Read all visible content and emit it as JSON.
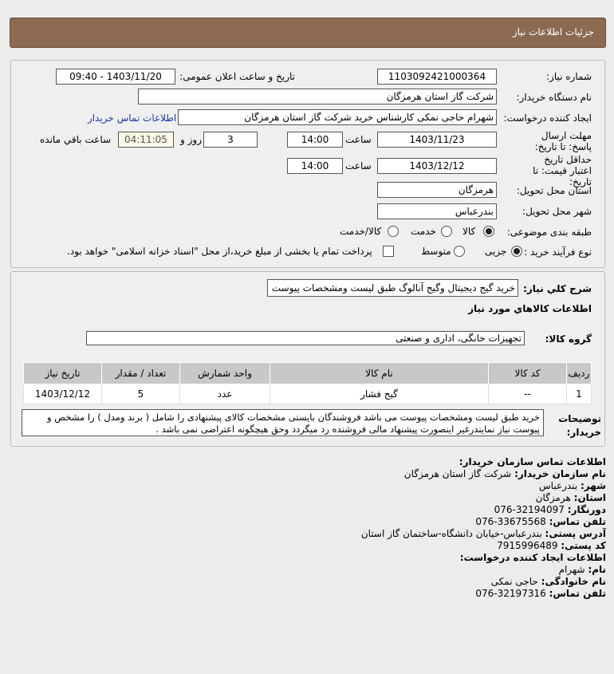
{
  "header": {
    "title": "جزئیات اطلاعات نیاز"
  },
  "form": {
    "need_number_label": "شماره نیاز:",
    "need_number": "1103092421000364",
    "announce_label": "تاريخ و ساعت اعلان عمومی:",
    "announce_value": "1403/11/20 - 09:40",
    "buyer_label": "نام دستگاه خریدار:",
    "buyer": "شرکت گاز استان هرمزگان",
    "creator_label": "ایجاد کننده درخواست:",
    "creator": "شهرام حاجی نمکی کارشناس خرید شرکت گاز استان هرمزگان",
    "contact_link": "اطلاعات تماس خریدار",
    "deadline_label": "مهلت ارسال پاسخ: تا تاریخ:",
    "deadline_date": "1403/11/23",
    "time_label": "ساعت",
    "deadline_time": "14:00",
    "days": "3",
    "days_label": "روز و",
    "remaining": "04:11:05",
    "remaining_label": "ساعت باقي مانده",
    "validity_label": "حداقل تاریخ اعتبار قیمت: تا تاریخ:",
    "validity_date": "1403/12/12",
    "validity_time": "14:00",
    "province_label": "استان محل تحویل:",
    "province": "هرمزگان",
    "city_label": "شهر محل تحویل:",
    "city": "بندرعباس",
    "category_label": "طبقه بندی موضوعی:",
    "category_options": [
      "کالا",
      "خدمت",
      "کالا/خدمت"
    ],
    "category_selected": "کالا",
    "process_label": "نوع فرآیند خرید :",
    "process_options": [
      "جزیی",
      "متوسط"
    ],
    "process_selected": "جزیی",
    "payment_note": "پرداخت تمام یا بخشی از مبلغ خرید،از محل \"اسناد خزانه اسلامی\" خواهد بود."
  },
  "details": {
    "summary_label": "شرح کلي نياز:",
    "summary": "خرید گیج دیجیتال وگیج آنالوگ طبق لیست ومشخصات پیوست",
    "items_title": "اطلاعات کالاهاي مورد نياز",
    "group_label": "گروه کالا:",
    "group": "تجهیزات خانگی، اداری و صنعتی",
    "table": {
      "headers": [
        "رديف",
        "کد کالا",
        "نام کالا",
        "واحد شمارش",
        "تعداد / مقدار",
        "تاریخ نیاز"
      ],
      "rows": [
        [
          "1",
          "--",
          "گیج فشار",
          "عدد",
          "5",
          "1403/12/12"
        ]
      ]
    },
    "notes_label": "توضیحات خریدار:",
    "notes": "خرید طبق لیست ومشخصات پیوست می باشد فروشندگان بایستی مشخصات کالای پیشنهادی را شامل ( برند ومدل ) را مشخص و پیوست نیاز نمایندرغیر اینصورت پیشنهاد مالی فروشنده رد میگردد وحق هیچگونه اعتراضی نمی باشد ."
  },
  "contact": {
    "title": "اطلاعات تماس سازمان خریدار:",
    "lines": [
      {
        "k": "نام سازمان خریدار:",
        "v": "شرکت گاز استان هرمزگان"
      },
      {
        "k": "شهر:",
        "v": "بندرعباس"
      },
      {
        "k": "استان:",
        "v": "هرمزگان"
      },
      {
        "k": "دورنگار:",
        "v": "32194097-076"
      },
      {
        "k": "تلفن تماس:",
        "v": "33675568-076"
      },
      {
        "k": "آدرس پستی:",
        "v": "بندرعباس-خیابان دانشگاه-ساختمان گاز استان"
      },
      {
        "k": "کد پستی:",
        "v": "7915996489"
      }
    ],
    "creator_title": "اطلاعات ایجاد کننده درخواست:",
    "creator_lines": [
      {
        "k": "نام:",
        "v": "شهرام"
      },
      {
        "k": "نام خانوادگی:",
        "v": "حاجی نمکی"
      },
      {
        "k": "تلفن تماس:",
        "v": "32197316-076"
      }
    ]
  }
}
